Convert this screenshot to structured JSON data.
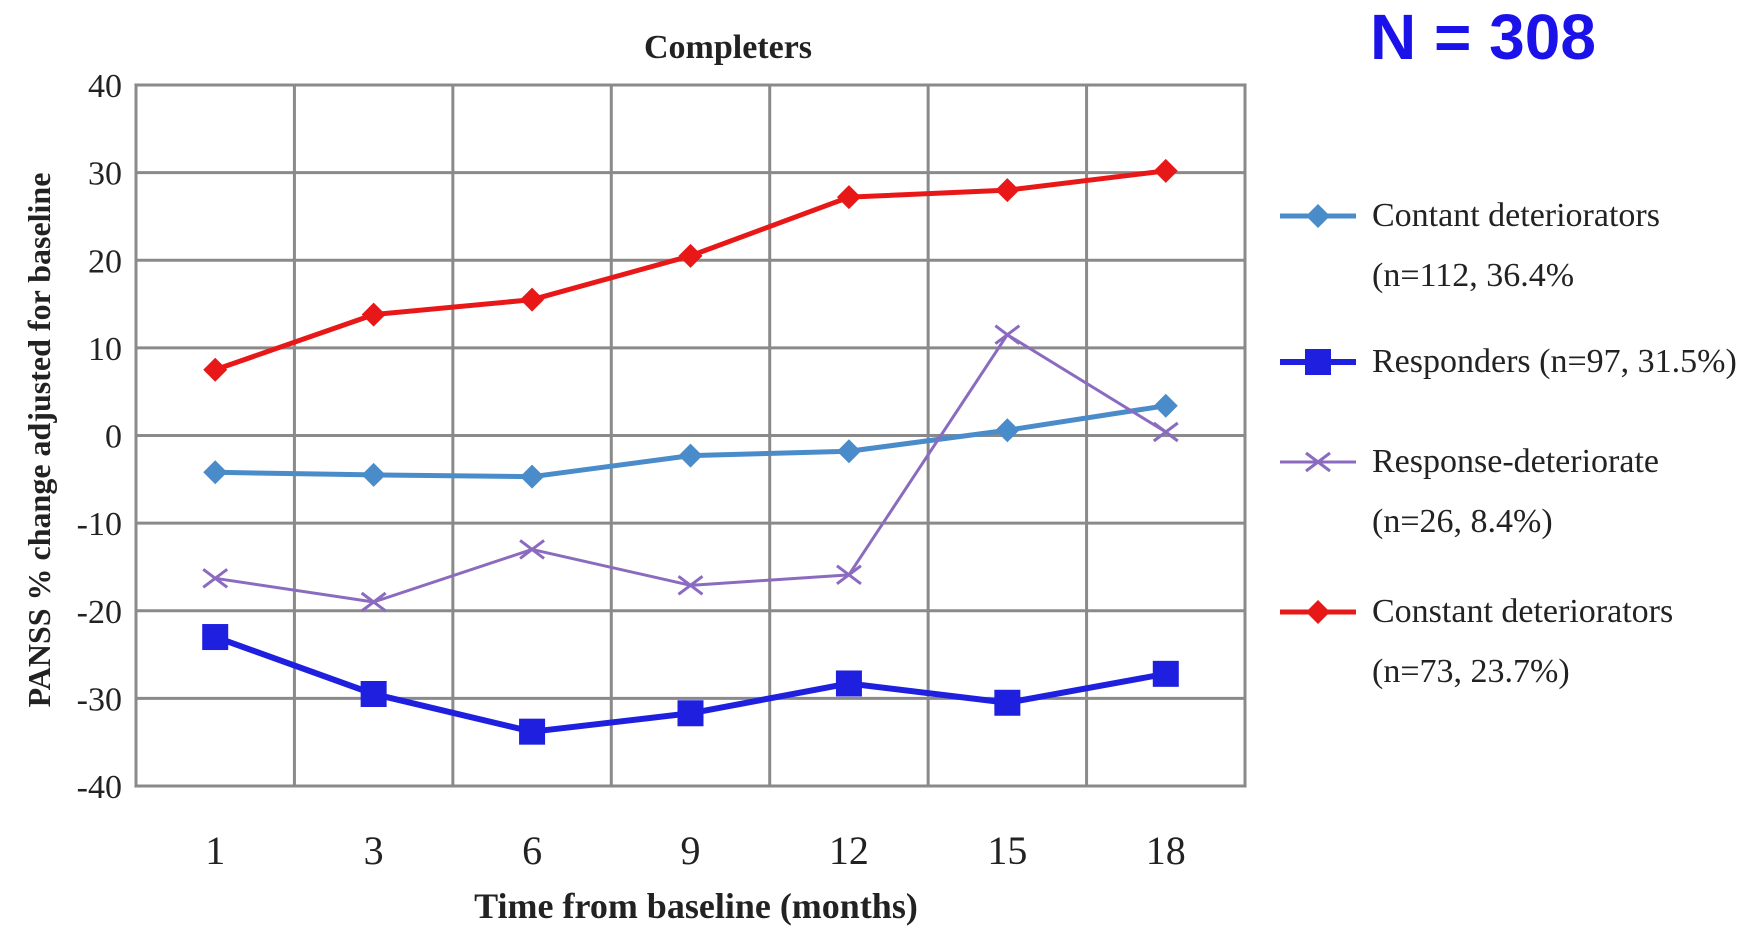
{
  "annotation": {
    "sample_size": "N = 308"
  },
  "chart_data": {
    "type": "line",
    "title": "Completers",
    "xlabel": "Time from baseline (months)",
    "ylabel": "PANSS % change adjusted for baseline",
    "categories": [
      "1",
      "3",
      "6",
      "9",
      "12",
      "15",
      "18"
    ],
    "ylim": [
      -40,
      40
    ],
    "yticks": [
      40,
      30,
      20,
      10,
      0,
      -10,
      -20,
      -30,
      -40
    ],
    "grid": true,
    "legend_position": "right",
    "series": [
      {
        "name": "Contant deteriorators (n=112, 36.4%",
        "legend_lines": [
          "Contant deteriorators",
          "(n=112, 36.4%"
        ],
        "color": "#4a8cc9",
        "marker": "diamond",
        "values": [
          -4.2,
          -4.5,
          -4.7,
          -2.3,
          -1.8,
          0.6,
          3.4
        ]
      },
      {
        "name": "Responders (n=97, 31.5%)",
        "legend_lines": [
          "Responders (n=97, 31.5%)"
        ],
        "color": "#1f1fe0",
        "marker": "square",
        "values": [
          -23,
          -29.5,
          -33.8,
          -31.7,
          -28.3,
          -30.5,
          -27.2
        ]
      },
      {
        "name": "Response-deteriorate (n=26, 8.4%)",
        "legend_lines": [
          "Response-deteriorate",
          " (n=26, 8.4%)"
        ],
        "color": "#8b6bbf",
        "marker": "x",
        "values": [
          -16.3,
          -19,
          -13,
          -17.1,
          -15.9,
          11.5,
          0.4
        ]
      },
      {
        "name": "Constant deteriorators (n=73, 23.7%)",
        "legend_lines": [
          "Constant deteriorators",
          "(n=73, 23.7%)"
        ],
        "color": "#e81818",
        "marker": "diamond",
        "values": [
          7.5,
          13.8,
          15.5,
          20.5,
          27.2,
          28,
          30.2
        ]
      }
    ]
  }
}
